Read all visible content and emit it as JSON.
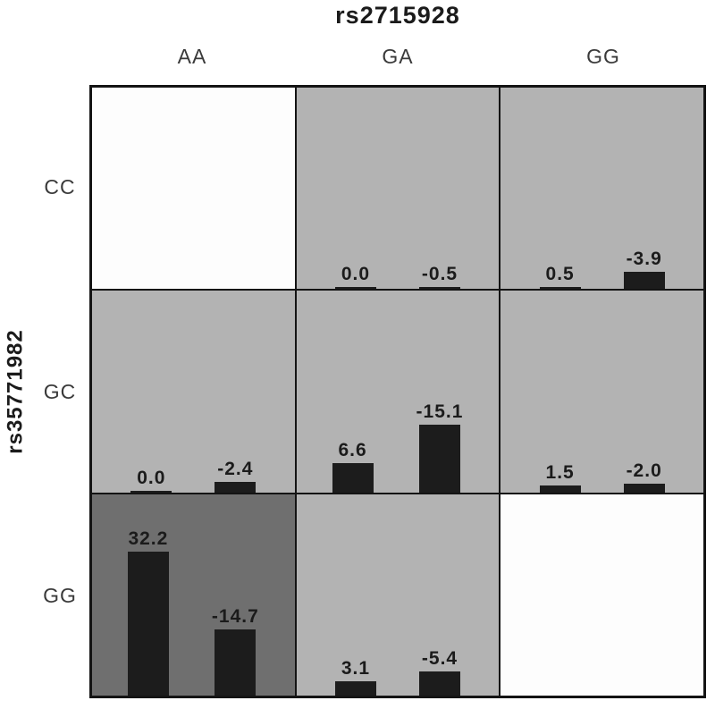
{
  "colors": {
    "bar": "#1c1c1c",
    "cell_light": "#b3b3b3",
    "cell_dark": "#6f6f6f",
    "cell_white": "#fdfdfd",
    "grid_line": "#141414",
    "label_text": "#1b1b1b",
    "axis_text": "#3a3a3a"
  },
  "chart_data": {
    "type": "bar",
    "title": "rs2715928",
    "xlabel": "rs2715928",
    "ylabel": "rs35771982",
    "columns": [
      "AA",
      "GA",
      "GG"
    ],
    "rows": [
      "CC",
      "GC",
      "GG"
    ],
    "legend": "none",
    "grid": "3x3 genotype interaction matrix, paired bars per cell, bars anchored to cell bottom",
    "cells": [
      {
        "row": "CC",
        "col": "AA",
        "shade": "white",
        "bars": []
      },
      {
        "row": "CC",
        "col": "GA",
        "shade": "light",
        "bars": [
          {
            "label": "0.0",
            "value": 0.0
          },
          {
            "label": "-0.5",
            "value": -0.5
          }
        ]
      },
      {
        "row": "CC",
        "col": "GG",
        "shade": "light",
        "bars": [
          {
            "label": "0.5",
            "value": 0.5
          },
          {
            "label": "-3.9",
            "value": -3.9
          }
        ]
      },
      {
        "row": "GC",
        "col": "AA",
        "shade": "light",
        "bars": [
          {
            "label": "0.0",
            "value": 0.0
          },
          {
            "label": "-2.4",
            "value": -2.4
          }
        ]
      },
      {
        "row": "GC",
        "col": "GA",
        "shade": "light",
        "bars": [
          {
            "label": "6.6",
            "value": 6.6
          },
          {
            "label": "-15.1",
            "value": -15.1
          }
        ]
      },
      {
        "row": "GC",
        "col": "GG",
        "shade": "light",
        "bars": [
          {
            "label": "1.5",
            "value": 1.5
          },
          {
            "label": "-2.0",
            "value": -2.0
          }
        ]
      },
      {
        "row": "GG",
        "col": "AA",
        "shade": "dark",
        "bars": [
          {
            "label": "32.2",
            "value": 32.2
          },
          {
            "label": "-14.7",
            "value": -14.7
          }
        ]
      },
      {
        "row": "GG",
        "col": "GA",
        "shade": "light",
        "bars": [
          {
            "label": "3.1",
            "value": 3.1
          },
          {
            "label": "-5.4",
            "value": -5.4
          }
        ]
      },
      {
        "row": "GG",
        "col": "GG",
        "shade": "white",
        "bars": []
      }
    ]
  }
}
